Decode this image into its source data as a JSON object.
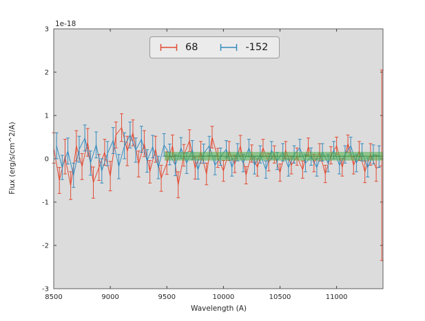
{
  "figure": {
    "background": "#ffffff",
    "axes_background": "#dcdcdc",
    "axes_edge_color": "#5c5c5c",
    "tick_color": "#3a3a3a",
    "tick_label_color": "#262626"
  },
  "axis": {
    "xlabel": "Wavelength (A)",
    "ylabel": "Flux (erg/s/cm^2/A)",
    "offset_label": "1e-18",
    "xlim": [
      8500,
      11410
    ],
    "ylim": [
      -3,
      3
    ],
    "x_ticks": [
      8500,
      9000,
      9500,
      10000,
      10500,
      11000
    ],
    "x_tick_labels": [
      "8500",
      "9000",
      "9500",
      "10000",
      "10500",
      "11000"
    ],
    "y_ticks": [
      -3,
      -2,
      -1,
      0,
      1,
      2,
      3
    ],
    "y_tick_labels": [
      "-3",
      "-2",
      "-1",
      "0",
      "1",
      "2",
      "3"
    ]
  },
  "legend": {
    "entries": [
      {
        "label": "68",
        "color": "#e24a33",
        "icon": "red-errorbar-icon"
      },
      {
        "label": "-152",
        "color": "#348abd",
        "icon": "blue-errorbar-icon"
      }
    ]
  },
  "chart_data": {
    "type": "line",
    "subtype": "errorbar",
    "title": "",
    "xlabel": "Wavelength (A)",
    "ylabel": "Flux (erg/s/cm^2/A)",
    "y_unit_scale": "1e-18",
    "xlim": [
      8500,
      11410
    ],
    "ylim": [
      -3,
      3
    ],
    "grid": false,
    "legend_position": "upper center",
    "series": [
      {
        "name": "68",
        "color": "#e24a33",
        "x": [
          8500,
          8550,
          8600,
          8650,
          8700,
          8750,
          8800,
          8850,
          8900,
          8950,
          9000,
          9050,
          9100,
          9150,
          9200,
          9250,
          9300,
          9350,
          9400,
          9450,
          9500,
          9550,
          9600,
          9650,
          9700,
          9750,
          9800,
          9850,
          9900,
          9950,
          10000,
          10050,
          10100,
          10150,
          10200,
          10250,
          10300,
          10350,
          10400,
          10450,
          10500,
          10550,
          10600,
          10650,
          10700,
          10750,
          10800,
          10850,
          10900,
          10950,
          11000,
          11050,
          11100,
          11150,
          11200,
          11250,
          11300,
          11350,
          11400
        ],
        "y": [
          0.25,
          -0.5,
          0.05,
          -0.62,
          0.3,
          -0.18,
          0.38,
          -0.55,
          -0.2,
          0.15,
          -0.4,
          0.55,
          0.72,
          0.18,
          0.6,
          -0.12,
          0.35,
          -0.3,
          0.22,
          -0.45,
          -0.1,
          0.3,
          -0.6,
          0.08,
          0.42,
          -0.22,
          0.15,
          -0.35,
          0.5,
          0.02,
          -0.28,
          0.18,
          -0.12,
          0.3,
          -0.38,
          0.12,
          -0.2,
          0.25,
          -0.08,
          0.1,
          -0.32,
          0.2,
          -0.15,
          0.05,
          -0.25,
          0.28,
          -0.1,
          0.15,
          -0.35,
          0.08,
          0.3,
          -0.2,
          0.35,
          -0.15,
          0.18,
          -0.3,
          0.1,
          -0.22,
          -0.15
        ],
        "yerr": [
          0.35,
          0.3,
          0.4,
          0.32,
          0.35,
          0.3,
          0.32,
          0.36,
          0.3,
          0.3,
          0.34,
          0.3,
          0.32,
          0.34,
          0.3,
          0.3,
          0.3,
          0.26,
          0.3,
          0.3,
          0.26,
          0.25,
          0.3,
          0.25,
          0.25,
          0.25,
          0.25,
          0.25,
          0.25,
          0.22,
          0.24,
          0.22,
          0.2,
          0.24,
          0.2,
          0.2,
          0.2,
          0.2,
          0.2,
          0.2,
          0.2,
          0.2,
          0.2,
          0.2,
          0.2,
          0.2,
          0.2,
          0.2,
          0.2,
          0.2,
          0.2,
          0.2,
          0.2,
          0.2,
          0.22,
          0.25,
          0.25,
          0.3,
          2.2
        ]
      },
      {
        "name": "-152",
        "color": "#348abd",
        "x": [
          8525,
          8575,
          8625,
          8675,
          8725,
          8775,
          8825,
          8875,
          8925,
          8975,
          9025,
          9075,
          9125,
          9175,
          9225,
          9275,
          9325,
          9375,
          9425,
          9475,
          9525,
          9575,
          9625,
          9675,
          9725,
          9775,
          9825,
          9875,
          9925,
          9975,
          10025,
          10075,
          10125,
          10175,
          10225,
          10275,
          10325,
          10375,
          10425,
          10475,
          10525,
          10575,
          10625,
          10675,
          10725,
          10775,
          10825,
          10875,
          10925,
          10975,
          11025,
          11075,
          11125,
          11175,
          11225,
          11275,
          11325,
          11375
        ],
        "y": [
          0.3,
          -0.2,
          0.18,
          -0.38,
          0.22,
          0.48,
          -0.1,
          0.32,
          -0.28,
          0.12,
          0.42,
          -0.18,
          0.3,
          0.55,
          0.2,
          0.45,
          -0.05,
          0.28,
          -0.2,
          0.32,
          0.1,
          -0.15,
          0.25,
          -0.1,
          0.2,
          -0.25,
          0.12,
          0.3,
          -0.15,
          0.05,
          0.22,
          -0.2,
          0.15,
          -0.1,
          0.25,
          -0.15,
          0.1,
          -0.25,
          0.2,
          -0.05,
          0.15,
          -0.2,
          0.1,
          0.25,
          -0.1,
          0.05,
          -0.2,
          0.15,
          -0.1,
          0.2,
          -0.15,
          0.1,
          0.3,
          -0.1,
          0.15,
          -0.2,
          0.1,
          0.05
        ],
        "yerr": [
          0.3,
          0.28,
          0.3,
          0.28,
          0.3,
          0.3,
          0.28,
          0.3,
          0.28,
          0.28,
          0.3,
          0.28,
          0.3,
          0.3,
          0.28,
          0.3,
          0.26,
          0.26,
          0.26,
          0.26,
          0.24,
          0.24,
          0.24,
          0.24,
          0.22,
          0.22,
          0.22,
          0.22,
          0.22,
          0.2,
          0.2,
          0.2,
          0.2,
          0.2,
          0.2,
          0.2,
          0.2,
          0.2,
          0.2,
          0.2,
          0.2,
          0.2,
          0.2,
          0.2,
          0.2,
          0.2,
          0.2,
          0.2,
          0.2,
          0.2,
          0.2,
          0.2,
          0.2,
          0.2,
          0.2,
          0.22,
          0.22,
          0.25
        ]
      }
    ],
    "band": {
      "name": "model-band",
      "color": "#4daf4a",
      "center_line_color": "#3a8f3a",
      "x_start": 9480,
      "x_end": 11410,
      "y_low": -0.04,
      "y_high": 0.16
    }
  }
}
